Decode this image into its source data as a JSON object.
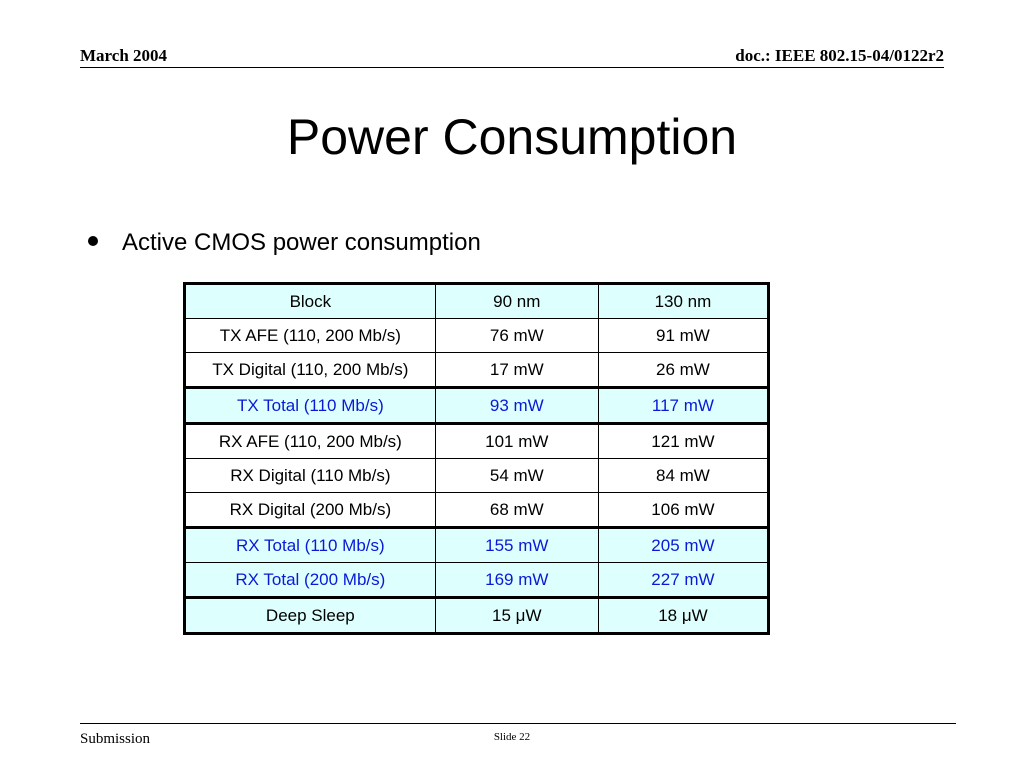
{
  "header": {
    "date": "March 2004",
    "doc_id": "doc.: IEEE 802.15-04/0122r2"
  },
  "slide": {
    "title": "Power Consumption",
    "bullet": "Active CMOS power consumption"
  },
  "table": {
    "header": [
      "Block",
      "90 nm",
      "130 nm"
    ],
    "rows": [
      [
        "TX AFE (110, 200 Mb/s)",
        "76 mW",
        "91 mW"
      ],
      [
        "TX Digital (110, 200 Mb/s)",
        "17 mW",
        "26 mW"
      ],
      [
        "TX Total (110 Mb/s)",
        "93 mW",
        "117 mW"
      ],
      [
        "RX AFE (110, 200 Mb/s)",
        "101 mW",
        "121 mW"
      ],
      [
        "RX Digital (110 Mb/s)",
        "54 mW",
        "84 mW"
      ],
      [
        "RX Digital (200 Mb/s)",
        "68 mW",
        "106 mW"
      ],
      [
        "RX Total (110 Mb/s)",
        "155 mW",
        "205 mW"
      ],
      [
        "RX Total (200 Mb/s)",
        "169 mW",
        "227 mW"
      ],
      [
        "Deep Sleep",
        "15 μW",
        "18 μW"
      ]
    ]
  },
  "footer": {
    "label": "Submission",
    "slide_number": "Slide 22"
  },
  "colors": {
    "highlight_text": "#0a19d8",
    "cell_fill": "#ddfffe"
  }
}
